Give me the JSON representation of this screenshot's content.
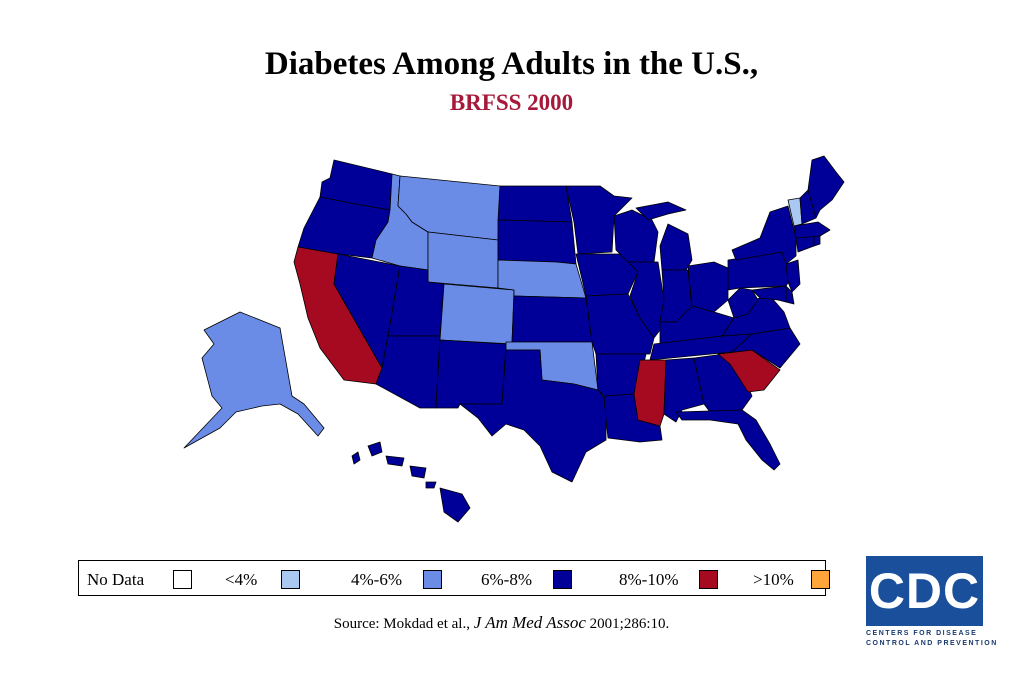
{
  "title": "Diabetes Among Adults in the U.S.,",
  "subtitle": "BRFSS 2000",
  "subtitle_color": "#a6193a",
  "legend": [
    {
      "label": "No Data",
      "color": "#ffffff"
    },
    {
      "label": "<4%",
      "color": "#a9c8f2"
    },
    {
      "label": "4%-6%",
      "color": "#6b8ce6"
    },
    {
      "label": "6%-8%",
      "color": "#000099"
    },
    {
      "label": "8%-10%",
      "color": "#a50a20"
    },
    {
      "label": ">10%",
      "color": "#ffa53a"
    }
  ],
  "source": {
    "prefix": "Source: Mokdad et al.,",
    "journal": "J Am Med Assoc",
    "suffix": "2001;286:10."
  },
  "logo": {
    "letters": "CDC",
    "line1": "CENTERS FOR DISEASE",
    "line2": "CONTROL AND PREVENTION"
  },
  "map_categories": {
    "below_4": [
      "Vermont"
    ],
    "4_to_6": [
      "Alaska",
      "Montana",
      "Idaho",
      "Wyoming",
      "Colorado",
      "Nebraska",
      "Oklahoma"
    ],
    "6_to_8": [
      "Washington",
      "Oregon",
      "Nevada",
      "Utah",
      "Arizona",
      "New Mexico",
      "Texas",
      "Hawaii",
      "North Dakota",
      "South Dakota",
      "Kansas",
      "Minnesota",
      "Iowa",
      "Missouri",
      "Arkansas",
      "Louisiana",
      "Wisconsin",
      "Illinois",
      "Michigan",
      "Indiana",
      "Ohio",
      "Kentucky",
      "Tennessee",
      "Alabama",
      "Georgia",
      "Florida",
      "North Carolina",
      "Virginia",
      "West Virginia",
      "Pennsylvania",
      "New York",
      "Maine",
      "New Hampshire",
      "Massachusetts",
      "Connecticut",
      "Rhode Island",
      "New Jersey",
      "Delaware",
      "Maryland"
    ],
    "8_to_10": [
      "California",
      "Mississippi",
      "South Carolina"
    ],
    "above_10": []
  }
}
